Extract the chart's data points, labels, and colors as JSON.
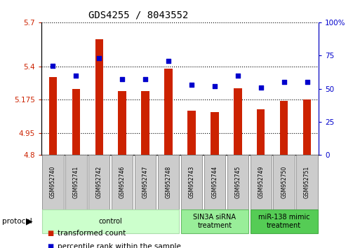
{
  "title": "GDS4255 / 8043552",
  "samples": [
    "GSM952740",
    "GSM952741",
    "GSM952742",
    "GSM952746",
    "GSM952747",
    "GSM952748",
    "GSM952743",
    "GSM952744",
    "GSM952745",
    "GSM952749",
    "GSM952750",
    "GSM952751"
  ],
  "bar_values": [
    5.33,
    5.25,
    5.585,
    5.235,
    5.235,
    5.385,
    5.1,
    5.09,
    5.255,
    5.11,
    5.165,
    5.175
  ],
  "dot_values": [
    67,
    60,
    73,
    57,
    57,
    71,
    53,
    52,
    60,
    51,
    55,
    55
  ],
  "ylim": [
    4.8,
    5.7
  ],
  "yticks": [
    4.8,
    4.95,
    5.175,
    5.4,
    5.7
  ],
  "ytick_labels": [
    "4.8",
    "4.95",
    "5.175",
    "5.4",
    "5.7"
  ],
  "y2lim": [
    0,
    100
  ],
  "y2ticks": [
    0,
    25,
    50,
    75,
    100
  ],
  "y2tick_labels": [
    "0",
    "25",
    "50",
    "75",
    "100%"
  ],
  "bar_color": "#cc2200",
  "dot_color": "#0000cc",
  "grid_color": "#000000",
  "bg_color": "#ffffff",
  "sample_box_color": "#cccccc",
  "groups": [
    {
      "label": "control",
      "start": 0,
      "end": 5,
      "color": "#ccffcc",
      "border": "#aaddaa"
    },
    {
      "label": "SIN3A siRNA\ntreatment",
      "start": 6,
      "end": 8,
      "color": "#99ee99",
      "border": "#66bb66"
    },
    {
      "label": "miR-138 mimic\ntreatment",
      "start": 9,
      "end": 11,
      "color": "#55cc55",
      "border": "#44aa44"
    }
  ],
  "legend_items": [
    {
      "label": "transformed count",
      "color": "#cc2200"
    },
    {
      "label": "percentile rank within the sample",
      "color": "#0000cc"
    }
  ],
  "title_fontsize": 10,
  "tick_fontsize": 7.5,
  "sample_fontsize": 5.5,
  "group_fontsize": 7,
  "legend_fontsize": 7.5
}
